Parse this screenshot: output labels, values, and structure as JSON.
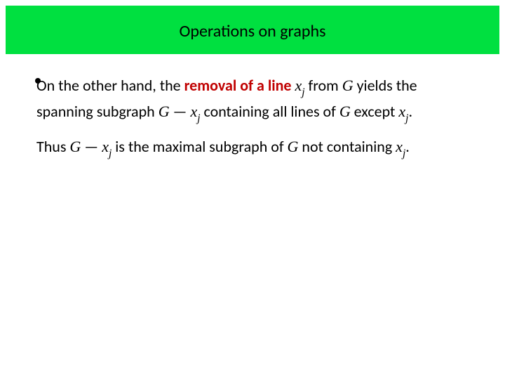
{
  "header": {
    "title": "Operations on graphs",
    "background_color": "#00e040",
    "title_color": "#000000",
    "title_fontsize": 24
  },
  "body": {
    "fontsize": 22,
    "text_color": "#000000",
    "highlight_color": "#c00000",
    "bullet_color": "#000000",
    "p1": {
      "t1": "On the other hand, the ",
      "hl": "removal of a line",
      "t2": " ",
      "v1": "x",
      "s1": "j",
      "t3": " from ",
      "v2": "G",
      "t4": " yields the spanning subgraph ",
      "v3": "G",
      "t5": " — ",
      "v4": "x",
      "s4": "j",
      "t6": " containing all lines of ",
      "v5": "G",
      "t7": " except ",
      "v6": "x",
      "s6": "j",
      "t8": "."
    },
    "p2": {
      "t1": "Thus ",
      "v1": "G",
      "t2": " — ",
      "v2": "x",
      "s2": "j",
      "t3": " is the maximal subgraph of ",
      "v3": "G",
      "t4": " not containing ",
      "v4": "x",
      "s4": "j",
      "t5": "."
    }
  }
}
